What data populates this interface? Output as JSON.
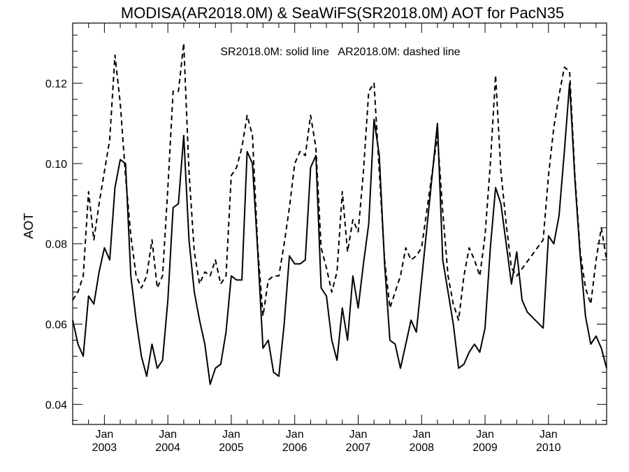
{
  "chart_data": {
    "type": "line",
    "title": "MODISA(AR2018.0M) & SeaWiFS(SR2018.0M)  AOT for PacN35",
    "annotation": "SR2018.0M: solid line   AR2018.0M: dashed line",
    "xlabel": "",
    "ylabel": "AOT",
    "xlim": [
      "2002-07",
      "2010-12"
    ],
    "ylim": [
      0.035,
      0.135
    ],
    "y_ticks": [
      0.04,
      0.06,
      0.08,
      0.1,
      0.12
    ],
    "y_tick_labels": [
      "0.04",
      "0.06",
      "0.08",
      "0.10",
      "0.12"
    ],
    "x_ticks": [
      {
        "month": "Jan",
        "year": "2003"
      },
      {
        "month": "Jan",
        "year": "2004"
      },
      {
        "month": "Jan",
        "year": "2005"
      },
      {
        "month": "Jan",
        "year": "2006"
      },
      {
        "month": "Jan",
        "year": "2007"
      },
      {
        "month": "Jan",
        "year": "2008"
      },
      {
        "month": "Jan",
        "year": "2009"
      },
      {
        "month": "Jan",
        "year": "2010"
      }
    ],
    "grid": false,
    "series": [
      {
        "name": "SR2018.0M",
        "style": "solid",
        "color": "#000000",
        "x": [
          "2002-07",
          "2002-08",
          "2002-09",
          "2002-10",
          "2002-11",
          "2002-12",
          "2003-01",
          "2003-02",
          "2003-03",
          "2003-04",
          "2003-05",
          "2003-06",
          "2003-07",
          "2003-08",
          "2003-09",
          "2003-10",
          "2003-11",
          "2003-12",
          "2004-01",
          "2004-02",
          "2004-03",
          "2004-04",
          "2004-05",
          "2004-06",
          "2004-07",
          "2004-08",
          "2004-09",
          "2004-10",
          "2004-11",
          "2004-12",
          "2005-01",
          "2005-02",
          "2005-03",
          "2005-04",
          "2005-05",
          "2005-06",
          "2005-07",
          "2005-08",
          "2005-09",
          "2005-10",
          "2005-11",
          "2005-12",
          "2006-01",
          "2006-02",
          "2006-03",
          "2006-04",
          "2006-05",
          "2006-06",
          "2006-07",
          "2006-08",
          "2006-09",
          "2006-10",
          "2006-11",
          "2006-12",
          "2007-01",
          "2007-02",
          "2007-03",
          "2007-04",
          "2007-05",
          "2007-06",
          "2007-07",
          "2007-08",
          "2007-09",
          "2007-10",
          "2007-11",
          "2007-12",
          "2008-04",
          "2008-05",
          "2008-06",
          "2008-07",
          "2008-08",
          "2008-09",
          "2008-10",
          "2008-11",
          "2008-12",
          "2009-01",
          "2009-02",
          "2009-03",
          "2009-04",
          "2009-05",
          "2009-06",
          "2009-07",
          "2009-08",
          "2009-09",
          "2009-12",
          "2010-01",
          "2010-02",
          "2010-03",
          "2010-04",
          "2010-05",
          "2010-06",
          "2010-07",
          "2010-08",
          "2010-09",
          "2010-10",
          "2010-11",
          "2010-12"
        ],
        "y": [
          0.061,
          0.055,
          0.052,
          0.067,
          0.065,
          0.073,
          0.079,
          0.076,
          0.094,
          0.101,
          0.1,
          0.072,
          0.061,
          0.052,
          0.047,
          0.055,
          0.049,
          0.051,
          0.066,
          0.089,
          0.09,
          0.107,
          0.081,
          0.068,
          0.061,
          0.055,
          0.045,
          0.049,
          0.05,
          0.058,
          0.072,
          0.071,
          0.071,
          0.103,
          0.1,
          0.078,
          0.054,
          0.056,
          0.048,
          0.047,
          0.06,
          0.077,
          0.075,
          0.075,
          0.076,
          0.099,
          0.102,
          0.069,
          0.067,
          0.056,
          0.051,
          0.064,
          0.056,
          0.072,
          0.064,
          0.075,
          0.085,
          0.111,
          0.102,
          0.075,
          0.056,
          0.055,
          0.049,
          0.055,
          0.061,
          0.058,
          0.11,
          0.076,
          0.068,
          0.06,
          0.049,
          0.05,
          0.053,
          0.055,
          0.053,
          0.059,
          0.079,
          0.094,
          0.09,
          0.08,
          0.07,
          0.078,
          0.066,
          0.063,
          0.059,
          0.082,
          0.08,
          0.087,
          0.103,
          0.12,
          0.096,
          0.077,
          0.062,
          0.055,
          0.057,
          0.054,
          0.049
        ]
      },
      {
        "name": "AR2018.0M",
        "style": "dashed",
        "color": "#000000",
        "x": [
          "2002-07",
          "2002-08",
          "2002-09",
          "2002-10",
          "2002-11",
          "2002-12",
          "2003-01",
          "2003-02",
          "2003-03",
          "2003-04",
          "2003-05",
          "2003-06",
          "2003-07",
          "2003-08",
          "2003-09",
          "2003-10",
          "2003-11",
          "2003-12",
          "2004-01",
          "2004-02",
          "2004-03",
          "2004-04",
          "2004-05",
          "2004-06",
          "2004-07",
          "2004-08",
          "2004-09",
          "2004-10",
          "2004-11",
          "2004-12",
          "2005-01",
          "2005-02",
          "2005-03",
          "2005-04",
          "2005-05",
          "2005-06",
          "2005-07",
          "2005-08",
          "2005-09",
          "2005-10",
          "2005-11",
          "2005-12",
          "2006-01",
          "2006-02",
          "2006-03",
          "2006-04",
          "2006-05",
          "2006-06",
          "2006-07",
          "2006-08",
          "2006-09",
          "2006-10",
          "2006-11",
          "2006-12",
          "2007-01",
          "2007-02",
          "2007-03",
          "2007-04",
          "2007-05",
          "2007-06",
          "2007-07",
          "2007-08",
          "2007-09",
          "2007-10",
          "2007-11",
          "2007-12",
          "2008-01",
          "2008-04",
          "2008-05",
          "2008-06",
          "2008-07",
          "2008-08",
          "2008-09",
          "2008-10",
          "2008-11",
          "2008-12",
          "2009-01",
          "2009-02",
          "2009-03",
          "2009-04",
          "2009-05",
          "2009-06",
          "2009-07",
          "2009-12",
          "2010-01",
          "2010-02",
          "2010-03",
          "2010-04",
          "2010-05",
          "2010-06",
          "2010-07",
          "2010-08",
          "2010-09",
          "2010-10",
          "2010-11",
          "2010-12"
        ],
        "y": [
          0.066,
          0.068,
          0.072,
          0.093,
          0.081,
          0.09,
          0.098,
          0.106,
          0.127,
          0.115,
          0.097,
          0.082,
          0.072,
          0.069,
          0.072,
          0.081,
          0.069,
          0.072,
          0.094,
          0.118,
          0.118,
          0.13,
          0.098,
          0.078,
          0.07,
          0.073,
          0.072,
          0.076,
          0.07,
          0.072,
          0.097,
          0.099,
          0.104,
          0.112,
          0.107,
          0.079,
          0.062,
          0.071,
          0.072,
          0.072,
          0.08,
          0.089,
          0.1,
          0.103,
          0.102,
          0.112,
          0.104,
          0.079,
          0.074,
          0.068,
          0.073,
          0.093,
          0.078,
          0.086,
          0.083,
          0.098,
          0.118,
          0.12,
          0.098,
          0.076,
          0.064,
          0.068,
          0.072,
          0.079,
          0.076,
          0.077,
          0.079,
          0.107,
          0.088,
          0.072,
          0.065,
          0.061,
          0.072,
          0.079,
          0.076,
          0.072,
          0.082,
          0.1,
          0.122,
          0.098,
          0.085,
          0.074,
          0.072,
          0.081,
          0.097,
          0.109,
          0.117,
          0.124,
          0.123,
          0.097,
          0.078,
          0.069,
          0.065,
          0.076,
          0.084,
          0.076
        ]
      }
    ]
  }
}
